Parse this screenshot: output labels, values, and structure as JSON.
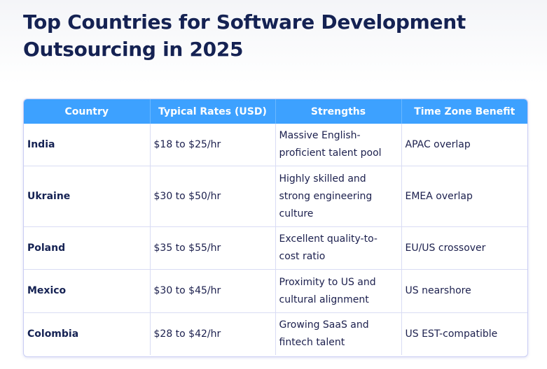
{
  "title": "Top Countries for Software Development Outsourcing in 2025",
  "table": {
    "headers": [
      "Country",
      "Typical Rates (USD)",
      "Strengths",
      "Time Zone Benefit"
    ],
    "rows": [
      [
        "India",
        "$18 to $25/hr",
        "Massive English-proficient talent pool",
        "APAC overlap"
      ],
      [
        "Ukraine",
        "$30 to $50/hr",
        "Highly skilled and strong engineering culture",
        "EMEA overlap"
      ],
      [
        "Poland",
        "$35 to $55/hr",
        "Excellent quality-to-cost ratio",
        "EU/US crossover"
      ],
      [
        "Mexico",
        "$30 to $45/hr",
        "Proximity to US and cultural alignment",
        "US nearshore"
      ],
      [
        "Colombia",
        "$28 to $42/hr",
        "Growing SaaS and fintech talent",
        "US EST-compatible"
      ]
    ]
  },
  "colors": {
    "header_bg": "#3da1ff",
    "title": "#152253",
    "border": "#c9cdf3"
  }
}
